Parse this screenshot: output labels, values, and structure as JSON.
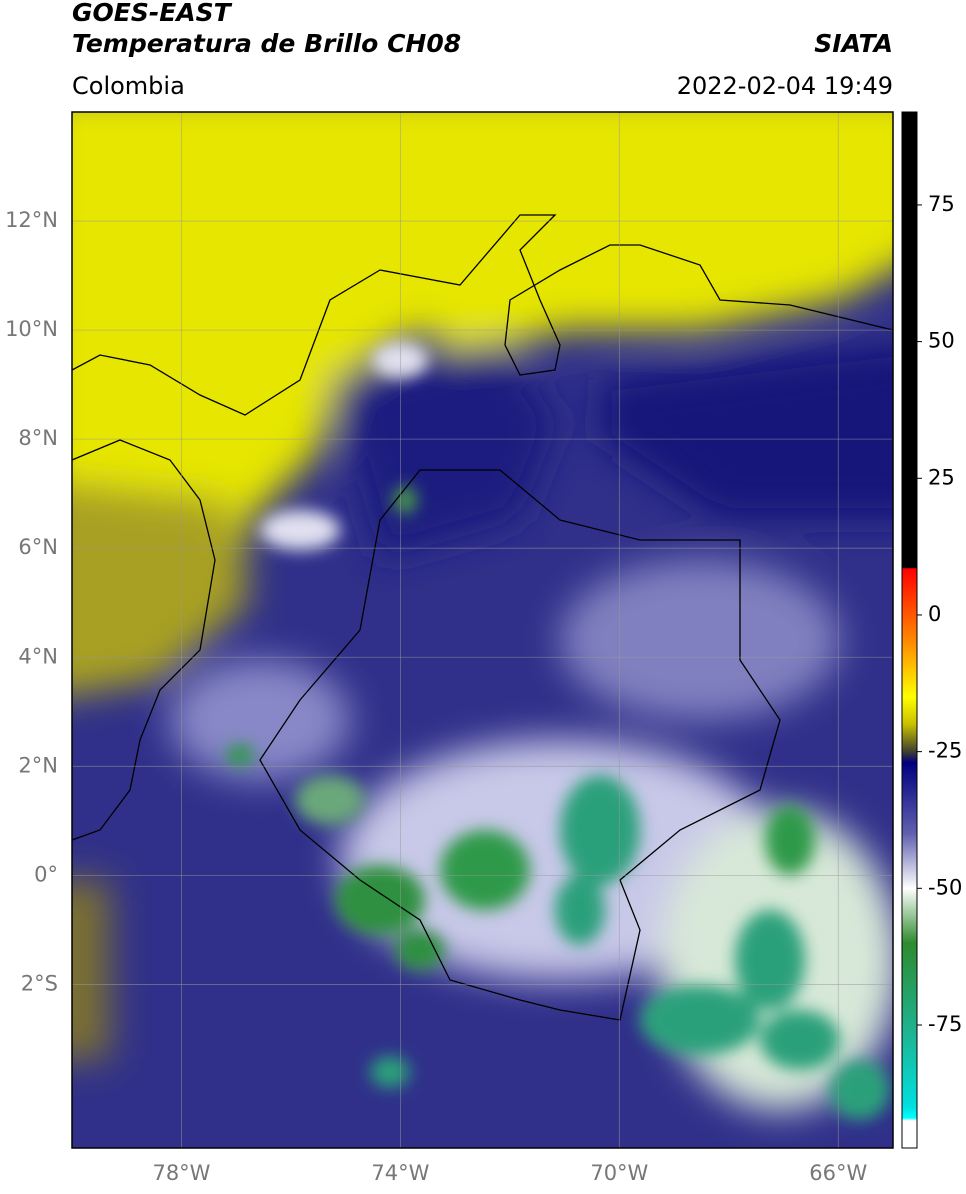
{
  "header": {
    "title": "GOES-EAST",
    "subtitle": "Temperatura de Brillo CH08",
    "source": "SIATA",
    "region": "Colombia",
    "datetime": "2022-02-04 19:49"
  },
  "map": {
    "xlim": [
      -80,
      -65
    ],
    "ylim": [
      -5,
      14
    ],
    "grid": true,
    "xticks": [
      {
        "value": -78,
        "label": "78°W"
      },
      {
        "value": -74,
        "label": "74°W"
      },
      {
        "value": -70,
        "label": "70°W"
      },
      {
        "value": -66,
        "label": "66°W"
      }
    ],
    "yticks": [
      {
        "value": 12,
        "label": "12°N"
      },
      {
        "value": 10,
        "label": "10°N"
      },
      {
        "value": 8,
        "label": "8°N"
      },
      {
        "value": 6,
        "label": "6°N"
      },
      {
        "value": 4,
        "label": "4°N"
      },
      {
        "value": 2,
        "label": "2°N"
      },
      {
        "value": 0,
        "label": "0°"
      },
      {
        "value": -2,
        "label": "2°S"
      }
    ]
  },
  "colorbar": {
    "clim": [
      -97.5,
      92
    ],
    "ticks": [
      75,
      50,
      25,
      0,
      -25,
      -50,
      -75
    ],
    "colormap": [
      {
        "value": 92,
        "color": "#000000"
      },
      {
        "value": 8.6,
        "color": "#000000"
      },
      {
        "value": 8.5,
        "color": "#ff0000"
      },
      {
        "value": -5,
        "color": "#ff8c00"
      },
      {
        "value": -15,
        "color": "#ffff00"
      },
      {
        "value": -20,
        "color": "#c8c000"
      },
      {
        "value": -25,
        "color": "#404030"
      },
      {
        "value": -27,
        "color": "#000080"
      },
      {
        "value": -40,
        "color": "#6060b0"
      },
      {
        "value": -50,
        "color": "#ffffff"
      },
      {
        "value": -60,
        "color": "#2e8b2e"
      },
      {
        "value": -75,
        "color": "#20b08a"
      },
      {
        "value": -90,
        "color": "#00e0e0"
      },
      {
        "value": -92,
        "color": "#00ffff"
      },
      {
        "value": -92.5,
        "color": "#ffffff"
      },
      {
        "value": -97.5,
        "color": "#ffffff"
      }
    ]
  }
}
